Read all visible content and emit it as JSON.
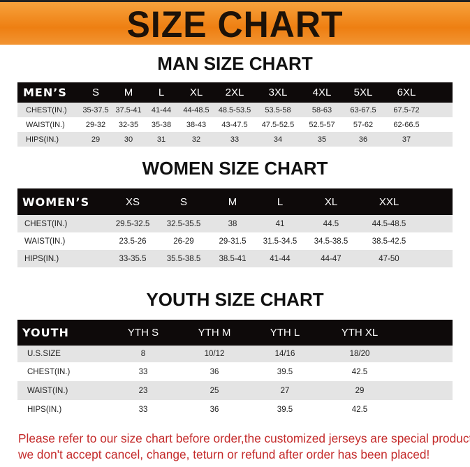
{
  "banner_title": "SIZE CHART",
  "colors": {
    "banner": "#ee7f12",
    "header_row": "#0e0a0a",
    "stripe": "#e4e4e4",
    "note": "#c42a2a"
  },
  "men": {
    "title": "MAN SIZE CHART",
    "header": "MEN’S",
    "sizes": [
      "S",
      "M",
      "L",
      "XL",
      "2XL",
      "3XL",
      "4XL",
      "5XL",
      "6XL"
    ],
    "rows": [
      {
        "label": "CHEST(IN.)",
        "values": [
          "35-37.5",
          "37.5-41",
          "41-44",
          "44-48.5",
          "48.5-53.5",
          "53.5-58",
          "58-63",
          "63-67.5",
          "67.5-72"
        ]
      },
      {
        "label": "WAIST(IN.)",
        "values": [
          "29-32",
          "32-35",
          "35-38",
          "38-43",
          "43-47.5",
          "47.5-52.5",
          "52.5-57",
          "57-62",
          "62-66.5"
        ]
      },
      {
        "label": "HIPS(IN.)",
        "values": [
          "29",
          "30",
          "31",
          "32",
          "33",
          "34",
          "35",
          "36",
          "37"
        ]
      }
    ]
  },
  "women": {
    "title": "WOMEN SIZE CHART",
    "header": "WOMEN’S",
    "sizes": [
      "XS",
      "S",
      "M",
      "L",
      "XL",
      "XXL"
    ],
    "rows": [
      {
        "label": "CHEST(IN.)",
        "values": [
          "29.5-32.5",
          "32.5-35.5",
          "38",
          "41",
          "44.5",
          "44.5-48.5"
        ]
      },
      {
        "label": "WAIST(IN.)",
        "values": [
          "23.5-26",
          "26-29",
          "29-31.5",
          "31.5-34.5",
          "34.5-38.5",
          "38.5-42.5"
        ]
      },
      {
        "label": "HIPS(IN.)",
        "values": [
          "33-35.5",
          "35.5-38.5",
          "38.5-41",
          "41-44",
          "44-47",
          "47-50"
        ]
      }
    ]
  },
  "youth": {
    "title": "YOUTH SIZE CHART",
    "header": "YOUTH",
    "sizes": [
      "YTH S",
      "YTH M",
      "YTH L",
      "YTH XL"
    ],
    "rows": [
      {
        "label": "U.S.SIZE",
        "values": [
          "8",
          "10/12",
          "14/16",
          "18/20"
        ]
      },
      {
        "label": "CHEST(IN.)",
        "values": [
          "33",
          "36",
          "39.5",
          "42.5"
        ]
      },
      {
        "label": "WAIST(IN.)",
        "values": [
          "23",
          "25",
          "27",
          "29"
        ]
      },
      {
        "label": "HIPS(IN.)",
        "values": [
          "33",
          "36",
          "39.5",
          "42.5"
        ]
      }
    ]
  },
  "note": [
    "Please refer to our size chart before order,the customized jerseys are special products,",
    "we don't accept cancel, change, teturn or refund after order has been placed!"
  ]
}
